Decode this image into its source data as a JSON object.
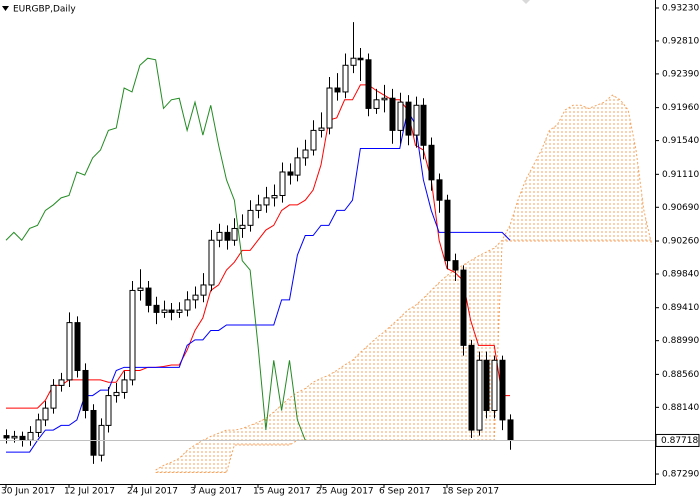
{
  "chart_data": {
    "type": "candlestick",
    "title": "EURGBP,Daily",
    "categories": [
      "30 Jun 2017",
      null,
      null,
      null,
      null,
      null,
      null,
      null,
      "12 Jul 2017",
      null,
      null,
      null,
      null,
      null,
      null,
      null,
      "24 Jul 2017",
      null,
      null,
      null,
      null,
      null,
      null,
      null,
      "3 Aug 2017",
      null,
      null,
      null,
      null,
      null,
      null,
      null,
      "15 Aug 2017",
      null,
      null,
      null,
      null,
      null,
      null,
      null,
      "25 Aug 2017",
      null,
      null,
      null,
      null,
      null,
      null,
      null,
      "6 Sep 2017",
      null,
      null,
      null,
      null,
      null,
      null,
      null,
      "18 Sep 2017",
      null,
      null,
      null,
      null,
      null,
      null,
      null,
      null,
      null,
      null,
      null,
      null,
      null,
      null,
      null,
      null,
      null,
      null,
      null,
      null,
      null,
      null,
      null,
      null,
      null,
      null
    ],
    "open": [
      0.8778,
      0.8775,
      0.8777,
      0.8772,
      0.8782,
      0.8798,
      0.8813,
      0.8842,
      0.8849,
      0.8922,
      0.8861,
      0.881,
      0.8753,
      0.8791,
      0.8829,
      0.8833,
      0.8849,
      0.8963,
      0.8966,
      0.8944,
      0.8935,
      0.8938,
      0.8935,
      0.8938,
      0.8951,
      0.8957,
      0.897,
      0.9027,
      0.9037,
      0.9027,
      0.9042,
      0.9046,
      0.9065,
      0.9072,
      0.9081,
      0.9084,
      0.9114,
      0.911,
      0.9132,
      0.9142,
      0.9167,
      0.917,
      0.9221,
      0.9216,
      0.925,
      0.9259,
      0.9257,
      0.9195,
      0.9206,
      0.9208,
      0.9167,
      0.9203,
      0.9161,
      0.9199,
      0.9148,
      0.9104,
      0.9078,
      0.9001,
      0.8989,
      0.8893,
      0.8785,
      0.8874,
      0.881,
      0.8874,
      0.8798,
      null,
      null,
      null,
      null,
      null,
      null,
      null,
      null,
      null,
      null,
      null,
      null,
      null,
      null,
      null,
      null,
      null,
      null
    ],
    "high": [
      0.8786,
      0.8784,
      0.8783,
      0.879,
      0.8806,
      0.8822,
      0.885,
      0.8858,
      0.8935,
      0.893,
      0.887,
      0.8818,
      0.88,
      0.884,
      0.8845,
      0.886,
      0.8975,
      0.899,
      0.8975,
      0.8955,
      0.895,
      0.8947,
      0.8948,
      0.8962,
      0.8968,
      0.8985,
      0.904,
      0.9048,
      0.9046,
      0.9055,
      0.906,
      0.9078,
      0.9085,
      0.9095,
      0.9098,
      0.9126,
      0.9125,
      0.9145,
      0.9155,
      0.918,
      0.919,
      0.9235,
      0.924,
      0.9265,
      0.9305,
      0.9272,
      0.9265,
      0.922,
      0.9225,
      0.922,
      0.9215,
      0.9212,
      0.921,
      0.9208,
      0.9158,
      0.9112,
      0.9085,
      0.901,
      0.8995,
      0.89,
      0.8885,
      0.8885,
      0.888,
      0.888,
      0.8805,
      null,
      null,
      null,
      null,
      null,
      null,
      null,
      null,
      null,
      null,
      null,
      null,
      null,
      null,
      null,
      null,
      null,
      null
    ],
    "low": [
      0.8768,
      0.8769,
      0.8764,
      0.8765,
      0.8776,
      0.879,
      0.8806,
      0.8834,
      0.884,
      0.8852,
      0.88,
      0.8742,
      0.8745,
      0.8782,
      0.882,
      0.8825,
      0.8842,
      0.895,
      0.8935,
      0.892,
      0.8928,
      0.8925,
      0.8928,
      0.893,
      0.894,
      0.8948,
      0.8962,
      0.9018,
      0.9015,
      0.902,
      0.903,
      0.9038,
      0.9055,
      0.9062,
      0.907,
      0.9075,
      0.9098,
      0.9102,
      0.9122,
      0.9135,
      0.9158,
      0.9162,
      0.9205,
      0.9208,
      0.924,
      0.923,
      0.9185,
      0.9188,
      0.919,
      0.915,
      0.915,
      0.9148,
      0.9145,
      0.913,
      0.909,
      0.9062,
      0.899,
      0.8975,
      0.888,
      0.8775,
      0.8778,
      0.88,
      0.88,
      0.8785,
      0.876,
      null,
      null,
      null,
      null,
      null,
      null,
      null,
      null,
      null,
      null,
      null,
      null,
      null,
      null,
      null,
      null,
      null,
      null
    ],
    "close": [
      0.8775,
      0.8777,
      0.8772,
      0.8782,
      0.8798,
      0.8813,
      0.8842,
      0.8849,
      0.8922,
      0.8861,
      0.881,
      0.8753,
      0.8791,
      0.8829,
      0.8833,
      0.8849,
      0.8963,
      0.8966,
      0.8944,
      0.8935,
      0.8938,
      0.8935,
      0.8938,
      0.8951,
      0.8957,
      0.897,
      0.9027,
      0.9037,
      0.9027,
      0.9042,
      0.9046,
      0.9065,
      0.9072,
      0.9081,
      0.9084,
      0.9114,
      0.911,
      0.9132,
      0.9142,
      0.9167,
      0.917,
      0.9221,
      0.9216,
      0.925,
      0.9259,
      0.9257,
      0.9195,
      0.9206,
      0.9208,
      0.9167,
      0.9203,
      0.9161,
      0.9199,
      0.9148,
      0.9104,
      0.9078,
      0.9001,
      0.8989,
      0.8893,
      0.8785,
      0.8874,
      0.881,
      0.8874,
      0.8798,
      0.87718,
      null,
      null,
      null,
      null,
      null,
      null,
      null,
      null,
      null,
      null,
      null,
      null,
      null,
      null,
      null,
      null,
      null,
      null
    ],
    "up_color": "#ffffff",
    "down_color": "#000000",
    "lines": [
      {
        "color": "#ff0000",
        "values": [
          0.8813,
          0.8813,
          0.8813,
          0.8813,
          0.8813,
          0.8823,
          0.8842,
          0.8842,
          0.8849,
          0.8849,
          0.8849,
          0.8849,
          0.8849,
          0.8846,
          0.8846,
          0.8861,
          0.8861,
          0.8861,
          0.8865,
          0.8865,
          0.8866,
          0.8868,
          0.8868,
          0.8887,
          0.8912,
          0.8928,
          0.8963,
          0.897,
          0.8989,
          0.8999,
          0.9014,
          0.9014,
          0.9027,
          0.904,
          0.9046,
          0.9065,
          0.9072,
          0.9072,
          0.9078,
          0.9091,
          0.9123,
          0.918,
          0.9183,
          0.9206,
          0.9206,
          0.9225,
          0.9225,
          0.9218,
          0.9212,
          0.9206,
          0.9206,
          0.9193,
          0.9148,
          0.9142,
          0.9104,
          0.9027,
          0.8991,
          0.8986,
          0.8976,
          0.8925,
          0.8893,
          0.8893,
          0.8893,
          0.8829,
          0.8829,
          null,
          null,
          null,
          null,
          null,
          null,
          null,
          null,
          null,
          null,
          null,
          null,
          null,
          null,
          null,
          null,
          null,
          null
        ]
      },
      {
        "color": "#0000ff",
        "values": [
          0.8757,
          0.8757,
          0.8757,
          0.8757,
          0.8772,
          0.8785,
          0.8785,
          0.8791,
          0.8791,
          0.8798,
          0.8829,
          0.8829,
          0.8836,
          0.8836,
          0.8861,
          0.8865,
          0.8865,
          0.8865,
          0.8865,
          0.8865,
          0.8865,
          0.8865,
          0.8865,
          0.8893,
          0.89,
          0.89,
          0.8912,
          0.8912,
          0.8919,
          0.8919,
          0.8919,
          0.8919,
          0.8919,
          0.8919,
          0.8919,
          0.8951,
          0.8951,
          0.9008,
          0.9033,
          0.9033,
          0.9046,
          0.9046,
          0.9065,
          0.9065,
          0.9078,
          0.9144,
          0.9144,
          0.9144,
          0.9144,
          0.9144,
          0.9144,
          0.9193,
          0.9174,
          0.9104,
          0.9065,
          0.9037,
          0.9037,
          0.9037,
          0.9037,
          0.9037,
          0.9037,
          0.9037,
          0.9037,
          0.9037,
          0.9027,
          null,
          null,
          null,
          null,
          null,
          null,
          null,
          null,
          null,
          null,
          null,
          null,
          null,
          null,
          null,
          null,
          null,
          null
        ]
      },
      {
        "color": "#228b22",
        "values": [
          0.9027,
          0.9037,
          0.9027,
          0.9042,
          0.9046,
          0.9065,
          0.9072,
          0.9081,
          0.9084,
          0.9114,
          0.911,
          0.9132,
          0.9142,
          0.9167,
          0.917,
          0.9221,
          0.9216,
          0.925,
          0.9259,
          0.9257,
          0.9195,
          0.9206,
          0.9208,
          0.9167,
          0.9203,
          0.9161,
          0.9199,
          0.9148,
          0.9104,
          0.9078,
          0.9001,
          0.8989,
          0.8893,
          0.8785,
          0.8874,
          0.881,
          0.8874,
          0.8798,
          0.8772,
          null,
          null,
          null,
          null,
          null,
          null,
          null,
          null,
          null,
          null,
          null,
          null,
          null,
          null,
          null,
          null,
          null,
          null,
          null,
          null,
          null,
          null,
          null,
          null,
          null,
          null,
          null,
          null,
          null,
          null,
          null,
          null,
          null,
          null,
          null,
          null,
          null,
          null,
          null,
          null,
          null,
          null,
          null,
          null
        ]
      }
    ],
    "cloud": {
      "color": "#f4a460",
      "span_a": [
        null,
        null,
        null,
        null,
        null,
        null,
        null,
        null,
        null,
        null,
        null,
        null,
        null,
        null,
        null,
        null,
        null,
        null,
        null,
        0.8734,
        0.874,
        0.8744,
        0.8749,
        0.8759,
        0.8766,
        0.8772,
        0.8777,
        0.8781,
        0.8785,
        0.8785,
        0.8787,
        0.8791,
        0.8795,
        0.88,
        0.8808,
        0.8817,
        0.8826,
        0.8833,
        0.8838,
        0.8846,
        0.8851,
        0.8855,
        0.8861,
        0.8868,
        0.8874,
        0.8884,
        0.8893,
        0.8902,
        0.891,
        0.8919,
        0.8928,
        0.8938,
        0.8944,
        0.8953,
        0.8963,
        0.8973,
        0.8982,
        0.8989,
        0.8995,
        0.9001,
        0.9007,
        0.9012,
        0.9017,
        0.9027,
        0.9046,
        0.9078,
        0.9104,
        0.9123,
        0.9142,
        0.9167,
        0.9174,
        0.9193,
        0.9199,
        0.9199,
        0.9195,
        0.9199,
        0.9203,
        0.9212,
        0.9206,
        0.9193,
        0.9142,
        0.9065,
        0.9021
      ],
      "span_b": [
        null,
        null,
        null,
        null,
        null,
        null,
        null,
        null,
        null,
        null,
        null,
        null,
        null,
        null,
        null,
        null,
        null,
        null,
        null,
        0.8731,
        0.8731,
        0.8731,
        0.8731,
        0.8731,
        0.8731,
        0.8731,
        0.8731,
        0.8731,
        0.8731,
        0.8766,
        0.8766,
        0.8766,
        0.8766,
        0.8766,
        0.8766,
        0.8766,
        0.8766,
        0.8772,
        0.8772,
        0.8772,
        0.8772,
        0.8772,
        0.8772,
        0.8772,
        0.8772,
        0.8772,
        0.8772,
        0.8772,
        0.8772,
        0.8772,
        0.8772,
        0.8772,
        0.8772,
        0.8772,
        0.8772,
        0.8772,
        0.8772,
        0.8772,
        0.8772,
        0.8772,
        0.8772,
        0.8772,
        0.8772,
        0.9026,
        0.9026,
        0.9026,
        0.9026,
        0.9026,
        0.9026,
        0.9026,
        0.9026,
        0.9026,
        0.9026,
        0.9026,
        0.9026,
        0.9026,
        0.9026,
        0.9026,
        0.9026,
        0.9026,
        0.9026,
        0.9026,
        0.9026
      ]
    },
    "ylim": [
      0.87163,
      0.93332
    ],
    "yticks": [
      {
        "value": 0.9323,
        "label": "0.93230"
      },
      {
        "value": 0.9281,
        "label": "0.92810"
      },
      {
        "value": 0.9239,
        "label": "0.92390"
      },
      {
        "value": 0.9196,
        "label": "0.91960"
      },
      {
        "value": 0.9154,
        "label": "0.91540"
      },
      {
        "value": 0.9111,
        "label": "0.91110"
      },
      {
        "value": 0.9069,
        "label": "0.90690"
      },
      {
        "value": 0.9026,
        "label": "0.90260"
      },
      {
        "value": 0.8984,
        "label": "0.89840"
      },
      {
        "value": 0.8941,
        "label": "0.89410"
      },
      {
        "value": 0.8899,
        "label": "0.88990"
      },
      {
        "value": 0.8856,
        "label": "0.88560"
      },
      {
        "value": 0.8814,
        "label": "0.88140"
      },
      {
        "value": 0.8729,
        "label": "0.87290"
      }
    ]
  }
}
